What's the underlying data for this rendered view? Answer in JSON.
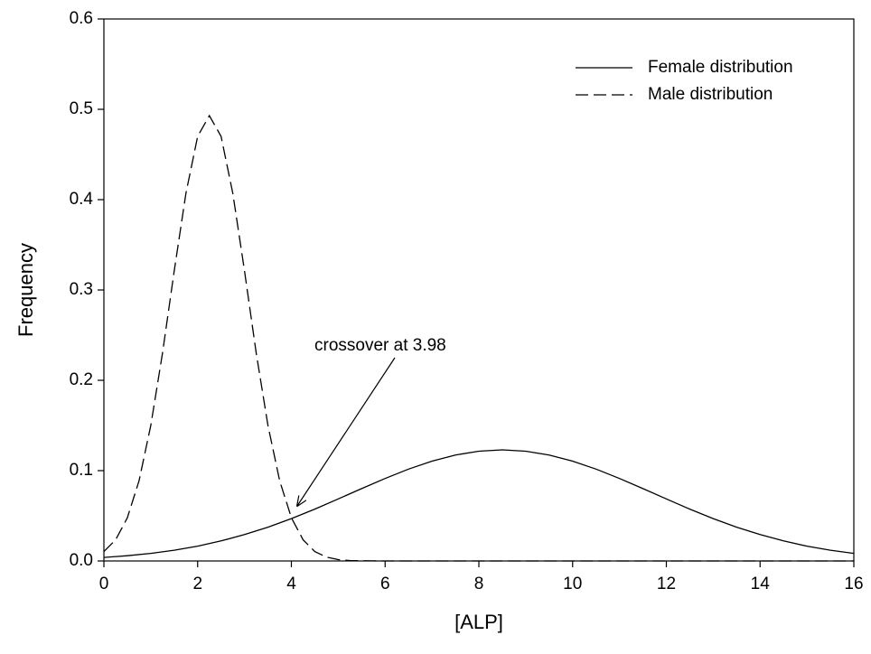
{
  "chart_data": {
    "type": "line",
    "x_label": "[ALP]",
    "y_label": "Frequency",
    "xlim": [
      0,
      16
    ],
    "ylim": [
      0,
      0.6
    ],
    "xticks": [
      0,
      2,
      4,
      6,
      8,
      10,
      12,
      14,
      16
    ],
    "yticks": [
      {
        "value": 0,
        "label": "0.0"
      },
      0.1,
      0.2,
      0.3,
      0.4,
      0.5,
      0.6
    ],
    "legend": "upper right",
    "annotation": "crossover at 3.98",
    "series": [
      {
        "name": "Female distribution",
        "color": "#000000",
        "line_style": "solid",
        "x": [
          0,
          0.5,
          1,
          1.5,
          2,
          2.5,
          3,
          3.5,
          4,
          4.5,
          5,
          5.5,
          6,
          6.5,
          7,
          7.5,
          8,
          8.5,
          9,
          9.5,
          10,
          10.5,
          11,
          11.5,
          12,
          12.5,
          13,
          13.5,
          14,
          14.5,
          15,
          15.5,
          16
        ],
        "values": [
          0.0039,
          0.0058,
          0.0084,
          0.0119,
          0.0164,
          0.0222,
          0.0292,
          0.0374,
          0.0469,
          0.0574,
          0.0687,
          0.0801,
          0.0913,
          0.1017,
          0.1105,
          0.1173,
          0.1215,
          0.123,
          0.1215,
          0.1173,
          0.1105,
          0.1017,
          0.0913,
          0.0801,
          0.0687,
          0.0574,
          0.0469,
          0.0374,
          0.0292,
          0.0222,
          0.0164,
          0.0119,
          0.0084
        ]
      },
      {
        "name": "Male distribution",
        "color": "#000000",
        "line_style": "dashed",
        "x": [
          0,
          0.25,
          0.5,
          0.75,
          1,
          1.25,
          1.5,
          1.75,
          2,
          2.25,
          2.5,
          2.75,
          3,
          3.25,
          3.5,
          3.75,
          4,
          4.25,
          4.5,
          4.75,
          5,
          5.25,
          5.5,
          5.75,
          6,
          8,
          10,
          12,
          14,
          16
        ],
        "values": [
          0.0104,
          0.0234,
          0.0478,
          0.0888,
          0.15,
          0.23,
          0.321,
          0.407,
          0.47,
          0.493,
          0.47,
          0.407,
          0.321,
          0.23,
          0.15,
          0.0888,
          0.0478,
          0.0234,
          0.0104,
          0.0042,
          0.0015,
          0.0005,
          0.0002,
          0.0001,
          0,
          0,
          0,
          0,
          0,
          0
        ]
      }
    ]
  }
}
